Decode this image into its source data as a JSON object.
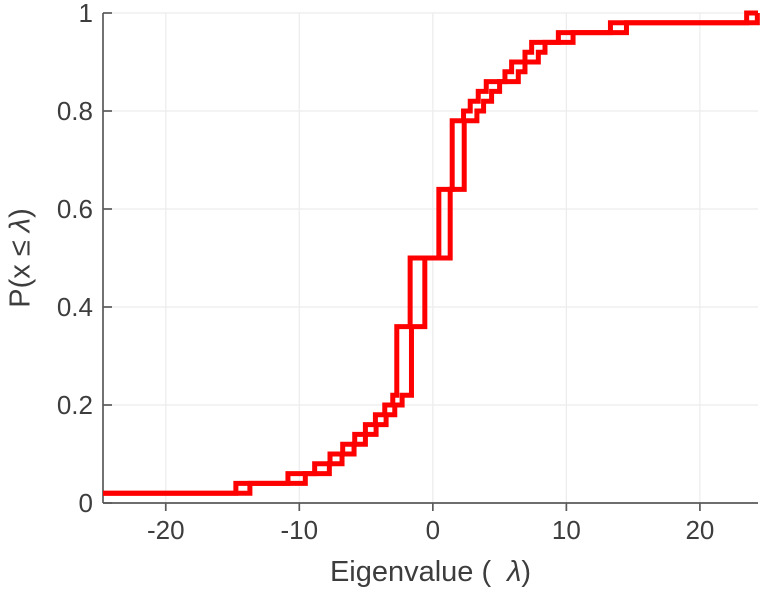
{
  "chart_data": {
    "type": "line",
    "subtype": "empirical-cdf-stairs",
    "title": "",
    "xlabel": {
      "prefix": "Eigenvalue (",
      "lambda": "λ",
      "suffix": ")"
    },
    "ylabel": {
      "prefix": "P(x ≤ ",
      "lambda": "λ",
      "suffix": ")"
    },
    "xlim": [
      -24.7,
      24.35
    ],
    "ylim": [
      0,
      1
    ],
    "grid": true,
    "legend": null,
    "xticks": [
      {
        "v": -20,
        "label": "-20"
      },
      {
        "v": -10,
        "label": "-10"
      },
      {
        "v": 0,
        "label": "0"
      },
      {
        "v": 10,
        "label": "10"
      },
      {
        "v": 20,
        "label": "20"
      }
    ],
    "yticks": [
      {
        "v": 0,
        "label": "0"
      },
      {
        "v": 0.2,
        "label": "0.2"
      },
      {
        "v": 0.4,
        "label": "0.4"
      },
      {
        "v": 0.6,
        "label": "0.6"
      },
      {
        "v": 0.8,
        "label": "0.8"
      },
      {
        "v": 1,
        "label": "1"
      }
    ],
    "colors": {
      "line": "#ff0000",
      "axis": "#5a5a5a",
      "grid": "#ececec",
      "tick_label": "#3d3d3d"
    },
    "line_width": 5,
    "series": [
      {
        "name": "ecdf-sample-1",
        "color": "#ff0000",
        "jumps": [
          [
            -24.9,
            0.02
          ],
          [
            -14.75,
            0.04
          ],
          [
            -10.85,
            0.06
          ],
          [
            -8.85,
            0.08
          ],
          [
            -7.7,
            0.1
          ],
          [
            -6.75,
            0.12
          ],
          [
            -5.85,
            0.14
          ],
          [
            -5.05,
            0.16
          ],
          [
            -4.3,
            0.18
          ],
          [
            -3.6,
            0.2
          ],
          [
            -3.0,
            0.22
          ],
          [
            -2.7,
            0.36
          ],
          [
            -1.7,
            0.5
          ],
          [
            0.45,
            0.64
          ],
          [
            1.45,
            0.78
          ],
          [
            2.3,
            0.8
          ],
          [
            2.8,
            0.82
          ],
          [
            3.4,
            0.84
          ],
          [
            4.0,
            0.86
          ],
          [
            5.4,
            0.88
          ],
          [
            5.9,
            0.9
          ],
          [
            6.9,
            0.92
          ],
          [
            7.4,
            0.94
          ],
          [
            9.4,
            0.96
          ],
          [
            13.3,
            0.98
          ],
          [
            23.5,
            1.0
          ]
        ]
      },
      {
        "name": "ecdf-sample-2",
        "color": "#ff0000",
        "jumps": [
          [
            -24.8,
            0.02
          ],
          [
            -13.7,
            0.04
          ],
          [
            -9.55,
            0.06
          ],
          [
            -7.75,
            0.08
          ],
          [
            -6.8,
            0.1
          ],
          [
            -5.9,
            0.12
          ],
          [
            -5.05,
            0.14
          ],
          [
            -4.25,
            0.16
          ],
          [
            -3.5,
            0.18
          ],
          [
            -2.85,
            0.2
          ],
          [
            -2.3,
            0.22
          ],
          [
            -1.6,
            0.36
          ],
          [
            -0.6,
            0.5
          ],
          [
            1.3,
            0.64
          ],
          [
            2.35,
            0.78
          ],
          [
            3.3,
            0.8
          ],
          [
            3.8,
            0.82
          ],
          [
            4.4,
            0.84
          ],
          [
            5.0,
            0.86
          ],
          [
            6.4,
            0.88
          ],
          [
            6.9,
            0.9
          ],
          [
            7.9,
            0.92
          ],
          [
            8.4,
            0.94
          ],
          [
            10.5,
            0.96
          ],
          [
            14.5,
            0.98
          ],
          [
            24.3,
            1.0
          ]
        ]
      }
    ]
  }
}
